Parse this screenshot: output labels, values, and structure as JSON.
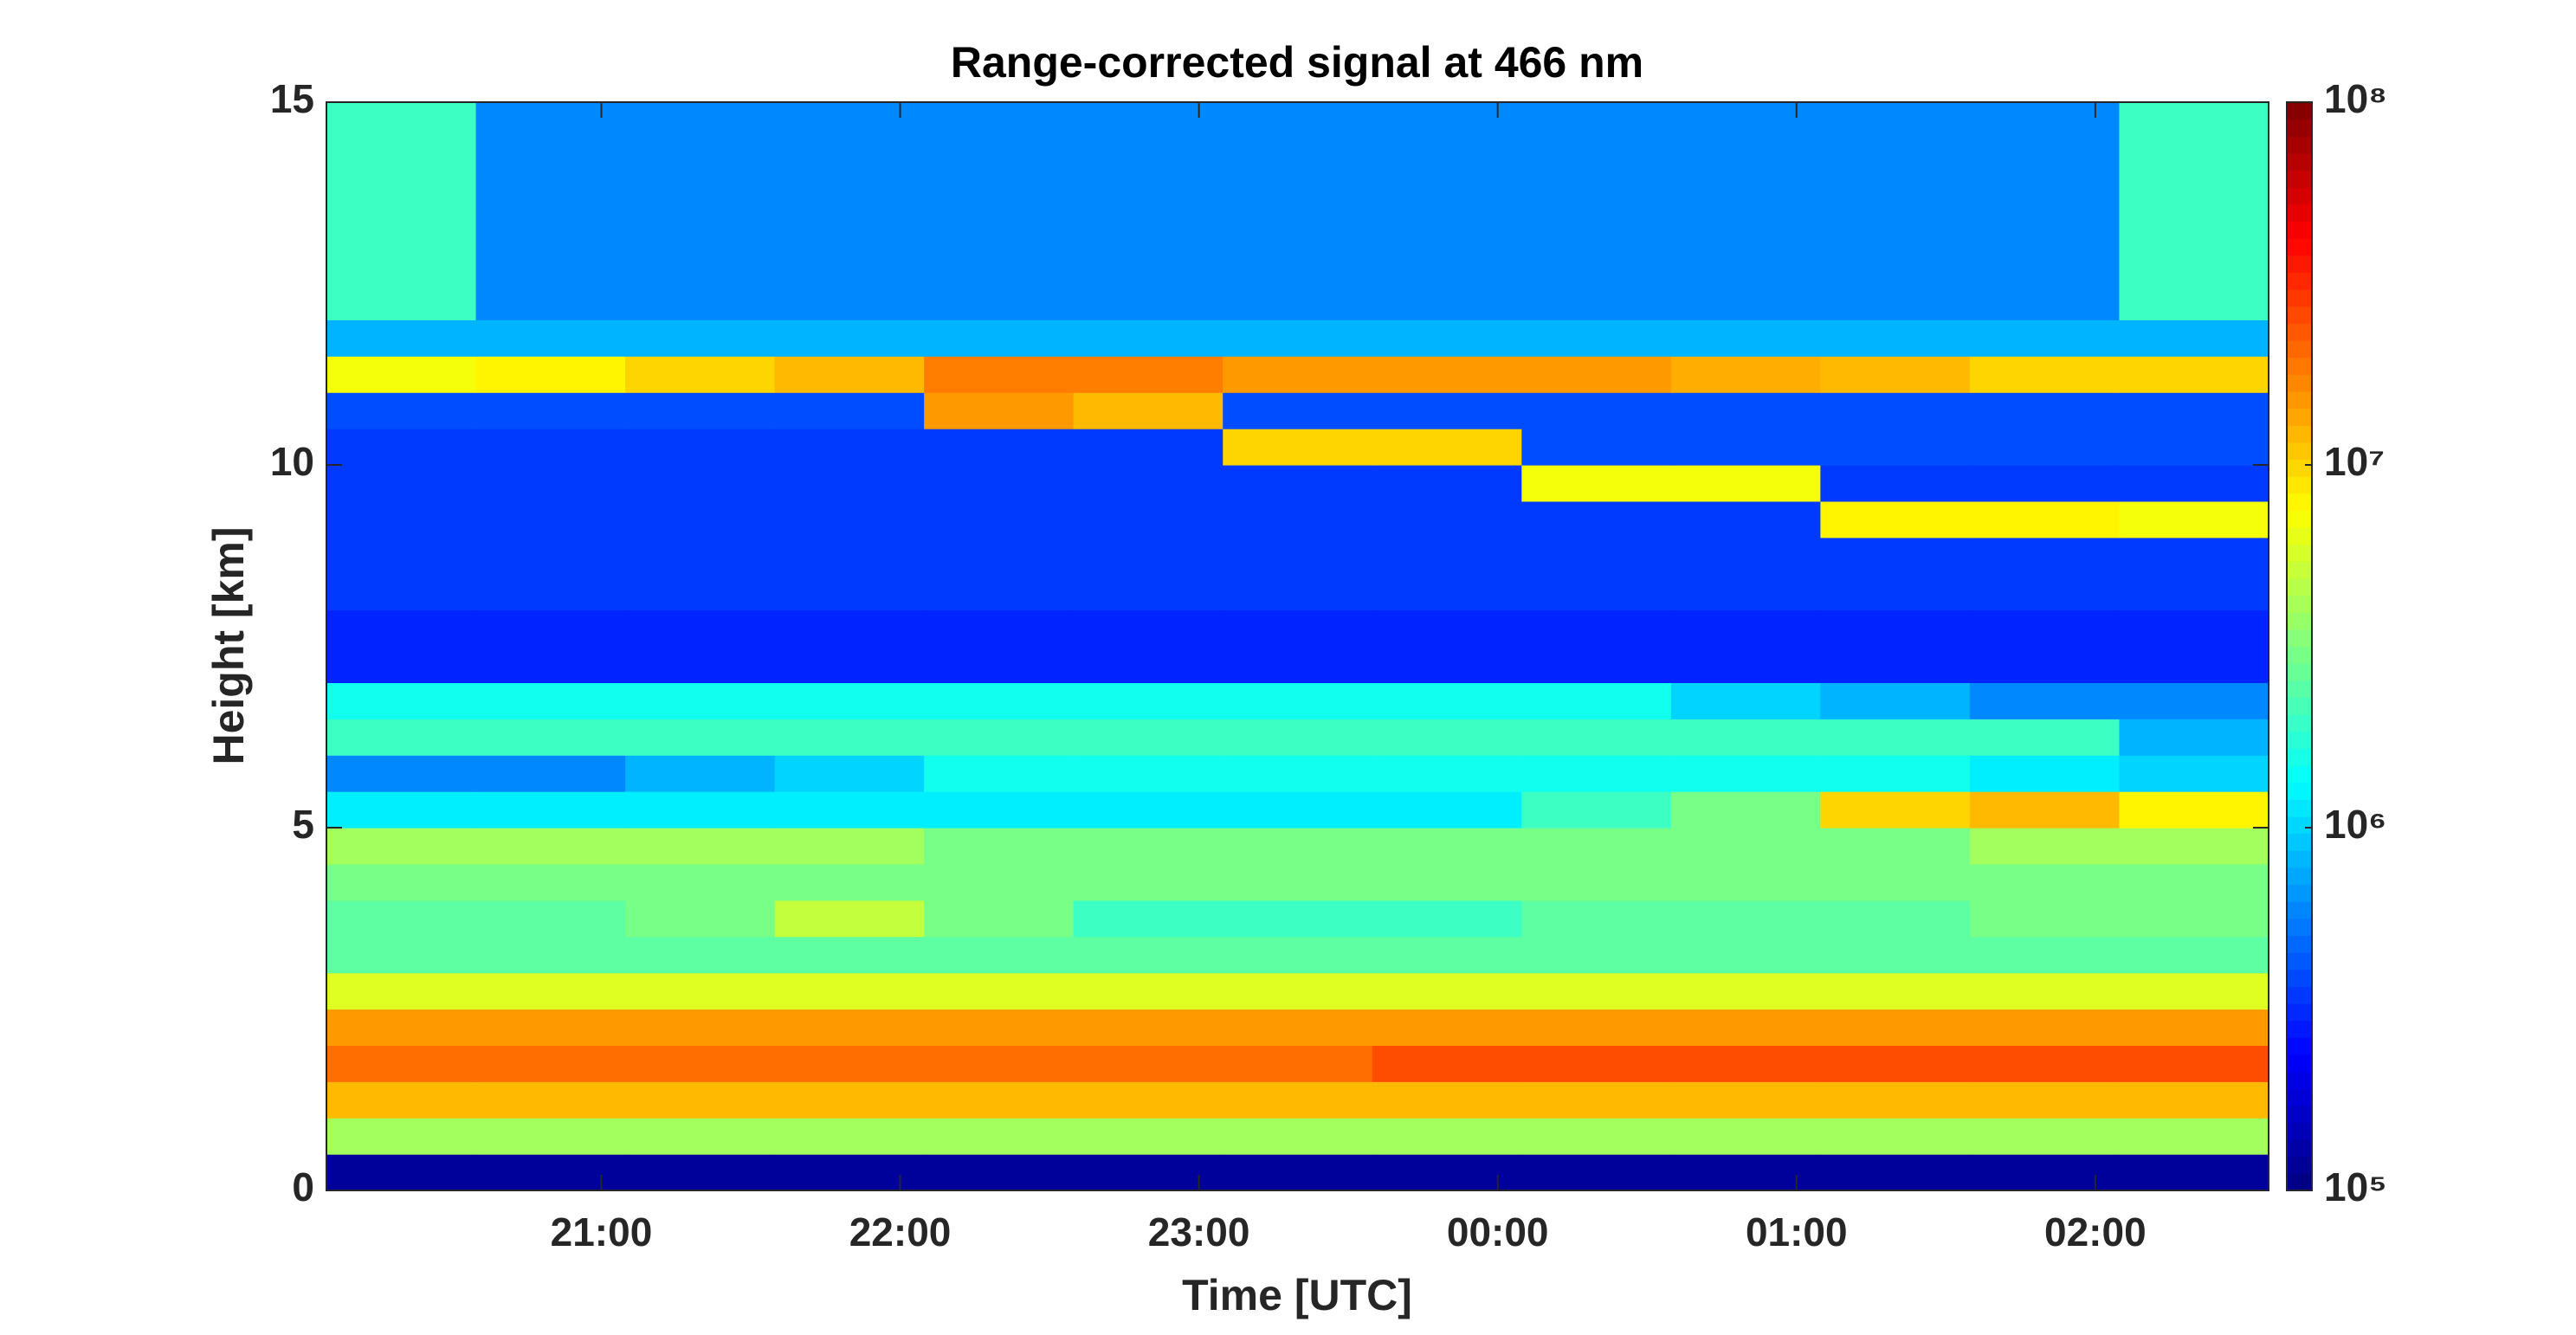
{
  "chart_data": {
    "type": "heatmap",
    "title": "Range-corrected signal at 466 nm",
    "x_label": "Time [UTC]",
    "y_label": "Height [km]",
    "xlim": [
      20.08,
      26.58
    ],
    "xticks": [
      {
        "value": 21,
        "label": "21:00"
      },
      {
        "value": 22,
        "label": "22:00"
      },
      {
        "value": 23,
        "label": "23:00"
      },
      {
        "value": 24,
        "label": "00:00"
      },
      {
        "value": 25,
        "label": "01:00"
      },
      {
        "value": 26,
        "label": "02:00"
      }
    ],
    "ylim": [
      0,
      15
    ],
    "yticks": [
      0,
      5,
      10,
      15
    ],
    "x": [
      20.33,
      20.83,
      21.33,
      21.83,
      22.33,
      22.83,
      23.33,
      23.83,
      24.33,
      24.83,
      25.33,
      25.83,
      26.33
    ],
    "y": [
      0.25,
      0.75,
      1.25,
      1.75,
      2.25,
      2.75,
      3.25,
      3.75,
      4.25,
      4.75,
      5.25,
      5.75,
      6.25,
      6.75,
      7.25,
      7.75,
      8.25,
      8.75,
      9.25,
      9.75,
      10.25,
      10.75,
      11.25,
      11.75,
      12.25,
      12.75,
      13.25,
      13.75,
      14.25,
      14.75
    ],
    "z": [
      [
        120000.0,
        120000.0,
        120000.0,
        120000.0,
        120000.0,
        120000.0,
        120000.0,
        120000.0,
        120000.0,
        120000.0,
        120000.0,
        120000.0,
        120000.0
      ],
      [
        4000000.0,
        4000000.0,
        4000000.0,
        4000000.0,
        4000000.0,
        4000000.0,
        4000000.0,
        4000000.0,
        4000000.0,
        4000000.0,
        4000000.0,
        4000000.0,
        4000000.0
      ],
      [
        12000000.0,
        12000000.0,
        12000000.0,
        12000000.0,
        12000000.0,
        12000000.0,
        12000000.0,
        12000000.0,
        12000000.0,
        12000000.0,
        12000000.0,
        12000000.0,
        12000000.0
      ],
      [
        20000000.0,
        20000000.0,
        20000000.0,
        20000000.0,
        20000000.0,
        20000000.0,
        20000000.0,
        25000000.0,
        25000000.0,
        25000000.0,
        25000000.0,
        25000000.0,
        25000000.0
      ],
      [
        15000000.0,
        15000000.0,
        15000000.0,
        15000000.0,
        15000000.0,
        15000000.0,
        15000000.0,
        15000000.0,
        15000000.0,
        15000000.0,
        15000000.0,
        15000000.0,
        15000000.0
      ],
      [
        6000000.0,
        6000000.0,
        6000000.0,
        6000000.0,
        6000000.0,
        6000000.0,
        6000000.0,
        6000000.0,
        6000000.0,
        6000000.0,
        6000000.0,
        6000000.0,
        6000000.0
      ],
      [
        2500000.0,
        2500000.0,
        2500000.0,
        2500000.0,
        2500000.0,
        2500000.0,
        2500000.0,
        2500000.0,
        2500000.0,
        2500000.0,
        2500000.0,
        2500000.0,
        2500000.0
      ],
      [
        2500000.0,
        2500000.0,
        3000000.0,
        5000000.0,
        3000000.0,
        2000000.0,
        2000000.0,
        2000000.0,
        2500000.0,
        2500000.0,
        2500000.0,
        3000000.0,
        3000000.0
      ],
      [
        3000000.0,
        3000000.0,
        3000000.0,
        3000000.0,
        3000000.0,
        3000000.0,
        3000000.0,
        3000000.0,
        3000000.0,
        3000000.0,
        3000000.0,
        3000000.0,
        3000000.0
      ],
      [
        4000000.0,
        4000000.0,
        4000000.0,
        4000000.0,
        3000000.0,
        3000000.0,
        3000000.0,
        3000000.0,
        3000000.0,
        3000000.0,
        3000000.0,
        4000000.0,
        4000000.0
      ],
      [
        1200000.0,
        1200000.0,
        1200000.0,
        1200000.0,
        1200000.0,
        1200000.0,
        1200000.0,
        1200000.0,
        2000000.0,
        3000000.0,
        10000000.0,
        12000000.0,
        8000000.0
      ],
      [
        600000.0,
        600000.0,
        800000.0,
        1000000.0,
        1500000.0,
        1500000.0,
        1500000.0,
        1500000.0,
        1500000.0,
        1500000.0,
        1500000.0,
        1200000.0,
        1000000.0
      ],
      [
        2000000.0,
        2000000.0,
        2000000.0,
        2000000.0,
        2000000.0,
        2000000.0,
        2000000.0,
        2000000.0,
        2000000.0,
        2000000.0,
        2000000.0,
        2000000.0,
        800000.0
      ],
      [
        1500000.0,
        1500000.0,
        1500000.0,
        1500000.0,
        1500000.0,
        1500000.0,
        1500000.0,
        1500000.0,
        1500000.0,
        1000000.0,
        800000.0,
        600000.0,
        600000.0
      ],
      [
        300000.0,
        300000.0,
        300000.0,
        300000.0,
        300000.0,
        300000.0,
        300000.0,
        300000.0,
        300000.0,
        300000.0,
        300000.0,
        300000.0,
        300000.0
      ],
      [
        300000.0,
        300000.0,
        300000.0,
        300000.0,
        300000.0,
        300000.0,
        300000.0,
        300000.0,
        300000.0,
        300000.0,
        300000.0,
        300000.0,
        300000.0
      ],
      [
        350000.0,
        350000.0,
        350000.0,
        350000.0,
        350000.0,
        350000.0,
        350000.0,
        350000.0,
        350000.0,
        350000.0,
        350000.0,
        350000.0,
        350000.0
      ],
      [
        350000.0,
        350000.0,
        350000.0,
        350000.0,
        350000.0,
        350000.0,
        350000.0,
        350000.0,
        350000.0,
        350000.0,
        350000.0,
        350000.0,
        350000.0
      ],
      [
        350000.0,
        350000.0,
        350000.0,
        350000.0,
        350000.0,
        350000.0,
        350000.0,
        350000.0,
        350000.0,
        350000.0,
        8000000.0,
        8000000.0,
        7000000.0
      ],
      [
        350000.0,
        350000.0,
        350000.0,
        350000.0,
        350000.0,
        350000.0,
        350000.0,
        350000.0,
        7000000.0,
        7000000.0,
        350000.0,
        350000.0,
        350000.0
      ],
      [
        350000.0,
        350000.0,
        350000.0,
        350000.0,
        350000.0,
        350000.0,
        10000000.0,
        10000000.0,
        400000.0,
        400000.0,
        400000.0,
        400000.0,
        400000.0
      ],
      [
        400000.0,
        400000.0,
        400000.0,
        400000.0,
        15000000.0,
        12000000.0,
        400000.0,
        400000.0,
        400000.0,
        400000.0,
        400000.0,
        400000.0,
        400000.0
      ],
      [
        7000000.0,
        8000000.0,
        10000000.0,
        12000000.0,
        18000000.0,
        18000000.0,
        15000000.0,
        15000000.0,
        15000000.0,
        13000000.0,
        12000000.0,
        10000000.0,
        10000000.0
      ],
      [
        800000.0,
        800000.0,
        800000.0,
        800000.0,
        800000.0,
        800000.0,
        800000.0,
        800000.0,
        800000.0,
        800000.0,
        800000.0,
        800000.0,
        800000.0
      ],
      [
        2000000.0,
        600000.0,
        600000.0,
        600000.0,
        600000.0,
        600000.0,
        600000.0,
        600000.0,
        600000.0,
        600000.0,
        600000.0,
        600000.0,
        2000000.0
      ],
      [
        2000000.0,
        600000.0,
        600000.0,
        600000.0,
        600000.0,
        600000.0,
        600000.0,
        600000.0,
        600000.0,
        600000.0,
        600000.0,
        600000.0,
        2000000.0
      ],
      [
        2000000.0,
        600000.0,
        600000.0,
        600000.0,
        600000.0,
        600000.0,
        600000.0,
        600000.0,
        600000.0,
        600000.0,
        600000.0,
        600000.0,
        2000000.0
      ],
      [
        2000000.0,
        600000.0,
        600000.0,
        600000.0,
        600000.0,
        600000.0,
        600000.0,
        600000.0,
        600000.0,
        600000.0,
        600000.0,
        600000.0,
        2000000.0
      ],
      [
        2000000.0,
        600000.0,
        600000.0,
        600000.0,
        600000.0,
        600000.0,
        600000.0,
        600000.0,
        600000.0,
        600000.0,
        600000.0,
        600000.0,
        2000000.0
      ],
      [
        2000000.0,
        600000.0,
        600000.0,
        600000.0,
        600000.0,
        600000.0,
        600000.0,
        600000.0,
        600000.0,
        600000.0,
        600000.0,
        600000.0,
        2000000.0
      ]
    ],
    "colormap": "jet",
    "zlog": true,
    "zlim": [
      100000,
      100000000
    ],
    "zticks": [
      {
        "value": 100000,
        "label": "10⁵"
      },
      {
        "value": 1000000,
        "label": "10⁶"
      },
      {
        "value": 10000000,
        "label": "10⁷"
      },
      {
        "value": 100000000,
        "label": "10⁸"
      }
    ]
  }
}
